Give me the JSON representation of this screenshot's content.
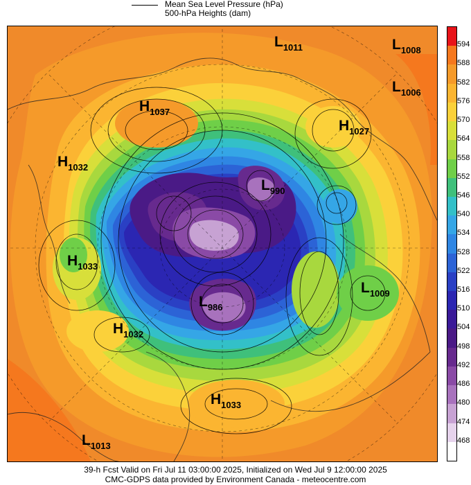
{
  "legend": {
    "line_label": "Mean Sea Level Pressure (hPa)",
    "fill_label": "500-hPa Heights (dam)"
  },
  "pressure_centers": [
    {
      "type": "L",
      "value": "1011",
      "name": "low-1011"
    },
    {
      "type": "L",
      "value": "1008",
      "name": "low-1008"
    },
    {
      "type": "L",
      "value": "1006",
      "name": "low-1006"
    },
    {
      "type": "H",
      "value": "1037",
      "name": "high-1037"
    },
    {
      "type": "H",
      "value": "1027",
      "name": "high-1027"
    },
    {
      "type": "H",
      "value": "1032",
      "name": "high-1032-west"
    },
    {
      "type": "L",
      "value": "990",
      "name": "low-990"
    },
    {
      "type": "H",
      "value": "1033",
      "name": "high-1033-west"
    },
    {
      "type": "L",
      "value": "1009",
      "name": "low-1009"
    },
    {
      "type": "L",
      "value": "986",
      "name": "low-986"
    },
    {
      "type": "H",
      "value": "1032",
      "name": "high-1032-south"
    },
    {
      "type": "H",
      "value": "1033",
      "name": "high-1033-south"
    },
    {
      "type": "L",
      "value": "1013",
      "name": "low-1013"
    }
  ],
  "colorbar": {
    "ticks": [
      "594",
      "588",
      "582",
      "576",
      "570",
      "564",
      "558",
      "552",
      "546",
      "540",
      "534",
      "528",
      "522",
      "516",
      "510",
      "504",
      "498",
      "492",
      "486",
      "480",
      "474",
      "468"
    ],
    "colors": [
      "#e8141a",
      "#f5781e",
      "#f59a2a",
      "#fbb531",
      "#fbd13a",
      "#d8df3a",
      "#a8d83e",
      "#6fcf48",
      "#3fc07b",
      "#33c0c8",
      "#35a6e6",
      "#2f86e3",
      "#2c63d6",
      "#2a40c4",
      "#2b26b2",
      "#3a1a98",
      "#4a1a86",
      "#672a8e",
      "#8a4aa6",
      "#a872bd",
      "#c7a2d3",
      "#e6d3ec",
      "#ffffff"
    ]
  },
  "footer": {
    "line1": "39-h Fcst Valid on Fri Jul 11 03:00:00 2025, Initialized on Wed Jul  9 12:00:00 2025",
    "line2": "CMC-GDPS data provided by Environment Canada - meteocentre.com"
  }
}
